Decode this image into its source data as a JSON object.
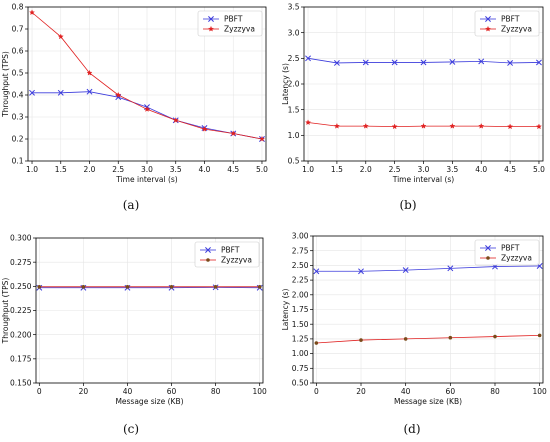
{
  "colors": {
    "pbft": "#3b3bdc",
    "zyzzyva_red": "#e02020",
    "zyzzyva_brown": "#7a4a1a",
    "axis": "#000000",
    "grid": "#e5e5e5"
  },
  "chart_data": [
    {
      "type": "line",
      "caption": "(a)",
      "xlabel": "Time interval (s)",
      "ylabel": "Throughput (TPS)",
      "x": [
        1.0,
        1.5,
        2.0,
        2.5,
        3.0,
        3.5,
        4.0,
        4.5,
        5.0
      ],
      "xticks": [
        "1.0",
        "1.5",
        "2.0",
        "2.5",
        "3.0",
        "3.5",
        "4.0",
        "4.5",
        "5.0"
      ],
      "xlim": [
        0.93,
        5.07
      ],
      "ylim": [
        0.1,
        0.8
      ],
      "yticks": [
        "0.1",
        "0.2",
        "0.3",
        "0.4",
        "0.5",
        "0.6",
        "0.7",
        "0.8"
      ],
      "grid": true,
      "legend": "top-right",
      "series": [
        {
          "name": "PBFT",
          "color": "#3b3bdc",
          "marker": "x",
          "values": [
            0.41,
            0.41,
            0.415,
            0.39,
            0.345,
            0.285,
            0.25,
            0.225,
            0.2
          ]
        },
        {
          "name": "Zyzzyva",
          "color": "#e02020",
          "marker": "star",
          "values": [
            0.775,
            0.665,
            0.5,
            0.4,
            0.335,
            0.285,
            0.245,
            0.225,
            0.2
          ]
        }
      ]
    },
    {
      "type": "line",
      "caption": "(b)",
      "xlabel": "Time interval (s)",
      "ylabel": "Latency (s)",
      "x": [
        1.0,
        1.5,
        2.0,
        2.5,
        3.0,
        3.5,
        4.0,
        4.5,
        5.0
      ],
      "xticks": [
        "1.0",
        "1.5",
        "2.0",
        "2.5",
        "3.0",
        "3.5",
        "4.0",
        "4.5",
        "5.0"
      ],
      "xlim": [
        0.93,
        5.07
      ],
      "ylim": [
        0.5,
        3.5
      ],
      "yticks": [
        "0.5",
        "1.0",
        "1.5",
        "2.0",
        "2.5",
        "3.0",
        "3.5"
      ],
      "grid": true,
      "legend": "top-right",
      "series": [
        {
          "name": "PBFT",
          "color": "#3b3bdc",
          "marker": "x",
          "values": [
            2.5,
            2.41,
            2.42,
            2.42,
            2.42,
            2.43,
            2.44,
            2.41,
            2.42
          ]
        },
        {
          "name": "Zyzzyva",
          "color": "#e02020",
          "marker": "star",
          "values": [
            1.25,
            1.18,
            1.18,
            1.17,
            1.18,
            1.18,
            1.18,
            1.17,
            1.17
          ]
        }
      ]
    },
    {
      "type": "line",
      "caption": "(c)",
      "xlabel": "Message size (KB)",
      "ylabel": "Throughput (TPS)",
      "x": [
        0,
        20,
        40,
        60,
        80,
        100
      ],
      "xticks": [
        "0",
        "20",
        "40",
        "60",
        "80",
        "100"
      ],
      "xlim": [
        -1.5,
        101.5
      ],
      "ylim": [
        0.15,
        0.3
      ],
      "yticks": [
        "0.150",
        "0.175",
        "0.200",
        "0.225",
        "0.250",
        "0.275",
        "0.300"
      ],
      "grid": true,
      "legend": "top-right",
      "series": [
        {
          "name": "PBFT",
          "color": "#3b3bdc",
          "marker": "x",
          "values": [
            0.2485,
            0.2485,
            0.2485,
            0.2485,
            0.249,
            0.2485
          ]
        },
        {
          "name": "Zyzzyva",
          "color": "#7a4a1a",
          "line_color": "#e02020",
          "marker": "dot",
          "values": [
            0.2495,
            0.2495,
            0.2495,
            0.2495,
            0.2495,
            0.2495
          ]
        }
      ]
    },
    {
      "type": "line",
      "caption": "(d)",
      "xlabel": "Message size (KB)",
      "ylabel": "Latency (s)",
      "x": [
        0,
        20,
        40,
        60,
        80,
        100
      ],
      "xticks": [
        "0",
        "20",
        "40",
        "60",
        "80",
        "100"
      ],
      "xlim": [
        -1.5,
        101.5
      ],
      "ylim": [
        0.5,
        3.0
      ],
      "yticks": [
        "0.50",
        "0.75",
        "1.00",
        "1.25",
        "1.50",
        "1.75",
        "2.00",
        "2.25",
        "2.50",
        "2.75",
        "3.00"
      ],
      "grid": true,
      "legend": "top-right",
      "series": [
        {
          "name": "PBFT",
          "color": "#3b3bdc",
          "marker": "x",
          "values": [
            2.4,
            2.4,
            2.42,
            2.45,
            2.48,
            2.49
          ]
        },
        {
          "name": "Zyzzyva",
          "color": "#7a4a1a",
          "line_color": "#e02020",
          "marker": "dot",
          "values": [
            1.18,
            1.23,
            1.25,
            1.27,
            1.29,
            1.31
          ]
        }
      ]
    }
  ]
}
